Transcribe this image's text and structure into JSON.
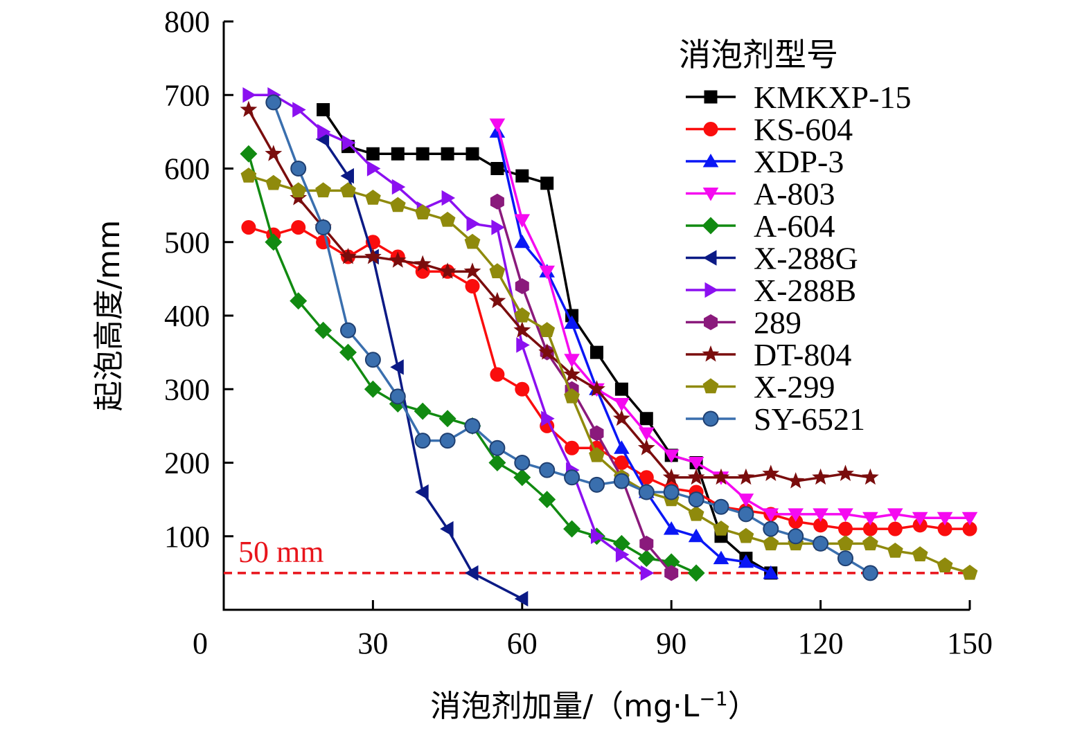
{
  "chart_data": {
    "type": "line",
    "xlabel": "消泡剂加量/（mg·L",
    "xlabel_sup": "−1",
    "xlabel_close": "）",
    "ylabel": "起泡高度/mm",
    "xlim": [
      0,
      150
    ],
    "ylim": [
      0,
      800
    ],
    "xticks": [
      0,
      30,
      60,
      90,
      120,
      150
    ],
    "yticks": [
      100,
      200,
      300,
      400,
      500,
      600,
      700,
      800
    ],
    "legend_title": "消泡剂型号",
    "legend_position": "top-right",
    "grid": false,
    "reference_line": {
      "y": 50,
      "label": "50 mm",
      "color": "#e8141b"
    },
    "series": [
      {
        "name": "KMKXP-15",
        "color": "#000000",
        "marker": "square",
        "x": [
          20,
          25,
          30,
          35,
          40,
          45,
          50,
          55,
          60,
          65,
          70,
          75,
          80,
          85,
          90,
          95,
          100,
          105,
          110
        ],
        "y": [
          680,
          630,
          620,
          620,
          620,
          620,
          620,
          600,
          590,
          580,
          400,
          350,
          300,
          260,
          210,
          200,
          100,
          70,
          50
        ]
      },
      {
        "name": "KS-604",
        "color": "#fa0d0d",
        "marker": "circle",
        "x": [
          5,
          10,
          15,
          20,
          25,
          30,
          35,
          40,
          45,
          50,
          55,
          60,
          65,
          70,
          75,
          80,
          85,
          90,
          95,
          100,
          105,
          110,
          115,
          120,
          125,
          130,
          135,
          140,
          145,
          150
        ],
        "y": [
          520,
          510,
          520,
          500,
          480,
          500,
          480,
          460,
          460,
          440,
          320,
          300,
          250,
          220,
          220,
          200,
          180,
          165,
          160,
          140,
          135,
          130,
          120,
          115,
          110,
          110,
          110,
          115,
          110,
          110
        ]
      },
      {
        "name": "XDP-3",
        "color": "#0a17f5",
        "marker": "triangle-up",
        "x": [
          55,
          60,
          65,
          70,
          75,
          80,
          85,
          90,
          95,
          100,
          105,
          110
        ],
        "y": [
          650,
          500,
          460,
          390,
          300,
          220,
          160,
          110,
          100,
          70,
          65,
          50
        ]
      },
      {
        "name": "A-803",
        "color": "#f50af0",
        "marker": "triangle-down",
        "x": [
          55,
          60,
          65,
          70,
          75,
          80,
          85,
          90,
          95,
          100,
          105,
          110,
          115,
          120,
          125,
          130,
          135,
          140,
          145,
          150
        ],
        "y": [
          660,
          530,
          460,
          340,
          300,
          280,
          240,
          210,
          200,
          180,
          150,
          130,
          130,
          130,
          130,
          125,
          130,
          125,
          125,
          125
        ]
      },
      {
        "name": "A-604",
        "color": "#118a11",
        "marker": "diamond",
        "x": [
          5,
          10,
          15,
          20,
          25,
          30,
          35,
          40,
          45,
          50,
          55,
          60,
          65,
          70,
          75,
          80,
          85,
          90,
          95
        ],
        "y": [
          620,
          500,
          420,
          380,
          350,
          300,
          280,
          270,
          260,
          250,
          200,
          180,
          150,
          110,
          100,
          90,
          70,
          65,
          50
        ]
      },
      {
        "name": "X-288G",
        "color": "#0b1a85",
        "marker": "triangle-left",
        "x": [
          20,
          25,
          30,
          35,
          40,
          45,
          50,
          60
        ],
        "y": [
          640,
          590,
          480,
          330,
          160,
          110,
          50,
          15
        ]
      },
      {
        "name": "X-288B",
        "color": "#8b10f0",
        "marker": "triangle-right",
        "x": [
          5,
          10,
          15,
          20,
          25,
          30,
          35,
          40,
          45,
          50,
          55,
          60,
          65,
          70,
          75,
          80,
          85
        ],
        "y": [
          700,
          700,
          680,
          650,
          635,
          600,
          575,
          545,
          560,
          525,
          520,
          360,
          260,
          190,
          100,
          75,
          50
        ]
      },
      {
        "name": "289",
        "color": "#8a1a7c",
        "marker": "hexagon",
        "x": [
          55,
          60,
          65,
          70,
          75,
          80,
          85,
          90
        ],
        "y": [
          555,
          440,
          350,
          300,
          240,
          180,
          90,
          50
        ]
      },
      {
        "name": "DT-804",
        "color": "#7a0d0d",
        "marker": "star",
        "x": [
          5,
          10,
          15,
          20,
          25,
          30,
          35,
          40,
          45,
          50,
          55,
          60,
          65,
          70,
          75,
          80,
          85,
          90,
          95,
          100,
          105,
          110,
          115,
          120,
          125,
          130
        ],
        "y": [
          680,
          620,
          560,
          520,
          480,
          480,
          475,
          470,
          460,
          460,
          420,
          380,
          350,
          320,
          300,
          260,
          220,
          180,
          180,
          180,
          180,
          185,
          175,
          180,
          185,
          180
        ]
      },
      {
        "name": "X-299",
        "color": "#8f8a0c",
        "marker": "pentagon",
        "x": [
          5,
          10,
          15,
          20,
          25,
          30,
          35,
          40,
          45,
          50,
          55,
          60,
          65,
          70,
          75,
          80,
          85,
          90,
          95,
          100,
          105,
          110,
          115,
          120,
          125,
          130,
          135,
          140,
          145,
          150
        ],
        "y": [
          590,
          580,
          570,
          570,
          570,
          560,
          550,
          540,
          530,
          500,
          460,
          400,
          380,
          290,
          210,
          180,
          160,
          150,
          130,
          110,
          100,
          90,
          90,
          90,
          90,
          90,
          80,
          75,
          60,
          50
        ]
      },
      {
        "name": "SY-6521",
        "color": "#3a6fae",
        "marker": "circle-ring",
        "x": [
          10,
          15,
          20,
          25,
          30,
          35,
          40,
          45,
          50,
          55,
          60,
          65,
          70,
          75,
          80,
          85,
          90,
          95,
          100,
          105,
          110,
          115,
          120,
          125,
          130
        ],
        "y": [
          690,
          600,
          520,
          380,
          340,
          290,
          230,
          230,
          250,
          220,
          200,
          190,
          180,
          170,
          175,
          160,
          160,
          150,
          140,
          130,
          110,
          100,
          90,
          70,
          50
        ]
      }
    ]
  }
}
